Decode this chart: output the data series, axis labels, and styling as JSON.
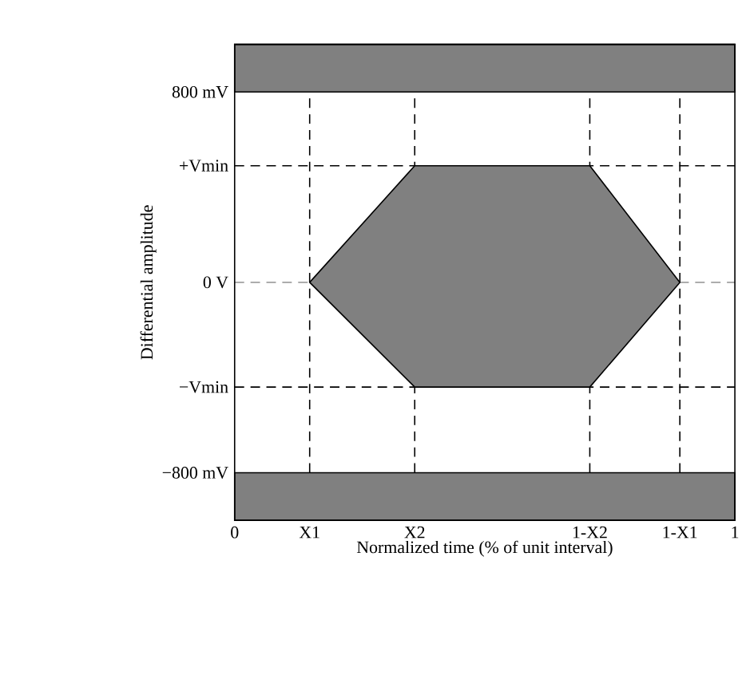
{
  "chart_data": {
    "type": "area",
    "xlabel": "Normalized time (% of unit interval)",
    "ylabel": "Differential amplitude",
    "xlim": [
      0,
      1
    ],
    "ylim": [
      -1000,
      1000
    ],
    "xticks": [
      0,
      {
        "value": 0.15,
        "label": "X1"
      },
      {
        "value": 0.36,
        "label": "X2"
      },
      {
        "value": 0.71,
        "label": "1-X2"
      },
      {
        "value": 0.89,
        "label": "1-X1"
      },
      1
    ],
    "yticks": [
      {
        "value": 800,
        "label": "800 mV"
      },
      {
        "value": 490,
        "label": "+Vmin"
      },
      {
        "value": 0,
        "label": "0 V"
      },
      {
        "value": -440,
        "label": "−Vmin"
      },
      {
        "value": -800,
        "label": "−800 mV"
      }
    ],
    "series": [
      {
        "color": "#808080",
        "x": [
          0.15,
          0.36,
          0.71,
          0.89,
          0.71,
          0.36,
          0.15
        ],
        "values": [
          0,
          490,
          490,
          0,
          -440,
          -440,
          0
        ]
      }
    ],
    "bands": [
      {
        "axis": "y",
        "from": 800,
        "to": 1000,
        "color": "#808080"
      },
      {
        "axis": "y",
        "from": -1000,
        "to": -800,
        "color": "#808080"
      }
    ],
    "ref_lines": [
      {
        "axis": "y",
        "value": 490,
        "color": "#000000",
        "line_style": "dashed"
      },
      {
        "axis": "y",
        "value": 0,
        "color": "#a0a0a0",
        "line_style": "dashed"
      },
      {
        "axis": "y",
        "value": -440,
        "color": "#000000",
        "line_style": "dashed"
      },
      {
        "axis": "x",
        "value": 0.15,
        "color": "#000000",
        "line_style": "dashed"
      },
      {
        "axis": "x",
        "value": 0.36,
        "color": "#000000",
        "line_style": "dashed"
      },
      {
        "axis": "x",
        "value": 0.71,
        "color": "#000000",
        "line_style": "dashed"
      },
      {
        "axis": "x",
        "value": 0.89,
        "color": "#000000",
        "line_style": "dashed"
      }
    ],
    "grid": false
  }
}
